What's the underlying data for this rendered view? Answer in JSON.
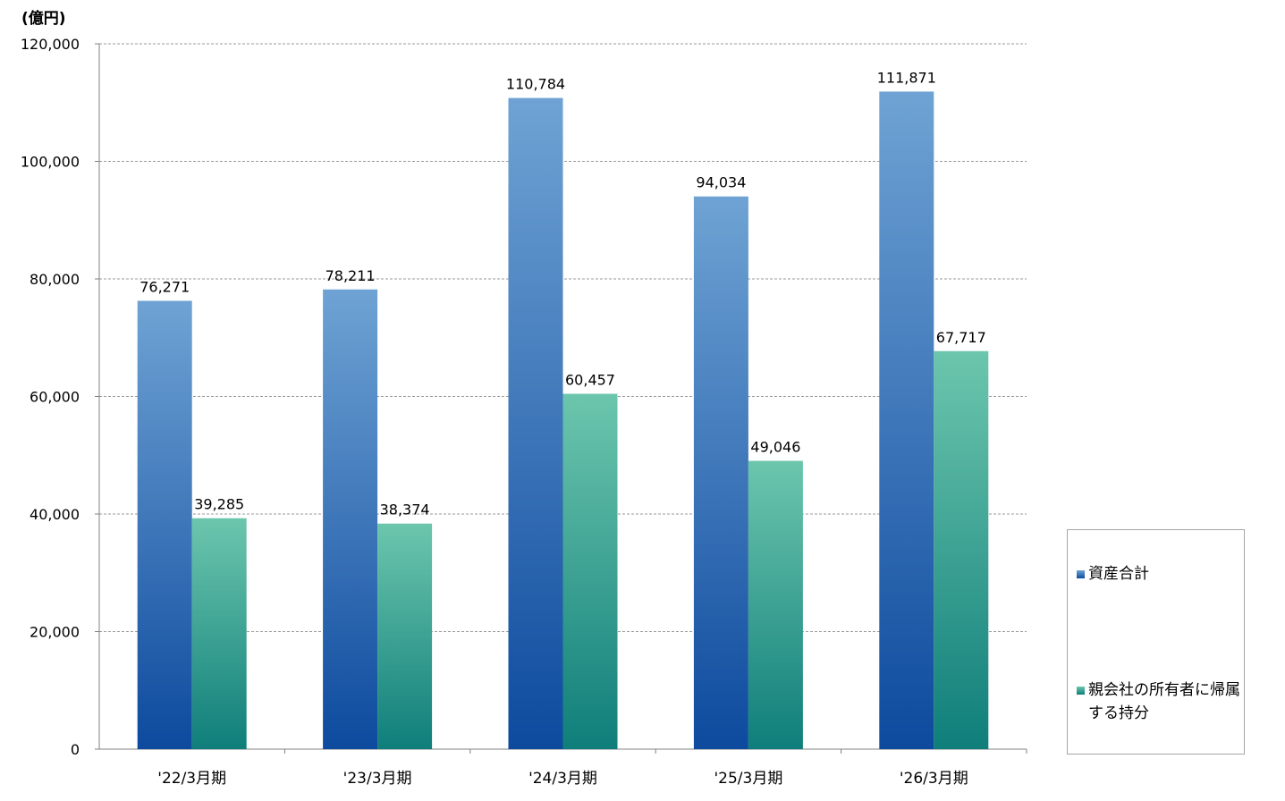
{
  "chart_data": {
    "type": "bar",
    "unit_label": "(億円)",
    "categories": [
      "'22/3月期",
      "'23/3月期",
      "'24/3月期",
      "'25/3月期",
      "'26/3月期"
    ],
    "series": [
      {
        "name": "資産合計",
        "values": [
          76271,
          78211,
          110784,
          94034,
          111871
        ],
        "labels": [
          "76,271",
          "78,211",
          "110,784",
          "94,034",
          "111,871"
        ],
        "color_top": "#6fa3d4",
        "color_bottom": "#0d4a9e"
      },
      {
        "name": "親会社の所有者に帰属する持分",
        "values": [
          39285,
          38374,
          60457,
          49046,
          67717
        ],
        "labels": [
          "39,285",
          "38,374",
          "60,457",
          "49,046",
          "67,717"
        ],
        "color_top": "#6cc6ad",
        "color_bottom": "#0f7e7a"
      }
    ],
    "ylim": [
      0,
      120000
    ],
    "yticks": [
      0,
      20000,
      40000,
      60000,
      80000,
      100000,
      120000
    ],
    "ytick_labels": [
      "0",
      "20,000",
      "40,000",
      "60,000",
      "80,000",
      "100,000",
      "120,000"
    ],
    "grid": true,
    "legend_position": "right"
  }
}
